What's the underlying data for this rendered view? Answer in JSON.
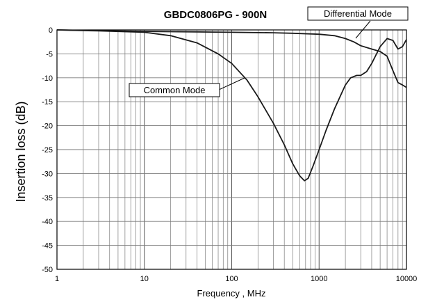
{
  "chart_data": {
    "type": "line",
    "title": "GBDC0806PG - 900N",
    "xlabel": "Frequency , MHz",
    "ylabel": "Insertion loss (dB)",
    "x_scale": "log",
    "xlim": [
      1,
      10000
    ],
    "ylim": [
      -50,
      0
    ],
    "x_ticks": [
      "1",
      "10",
      "100",
      "1000",
      "10000"
    ],
    "y_ticks": [
      "0",
      "-5",
      "-10",
      "-15",
      "-20",
      "-25",
      "-30",
      "-35",
      "-40",
      "-45",
      "-50"
    ],
    "grid": true,
    "legend": "none",
    "annotations": [
      "Common Mode",
      "Differential Mode"
    ],
    "series": [
      {
        "name": "Common Mode",
        "color": "#1a1a1a",
        "x": [
          1,
          3,
          10,
          20,
          40,
          70,
          100,
          150,
          200,
          300,
          400,
          500,
          600,
          680,
          750,
          850,
          1000,
          1200,
          1500,
          2000,
          2300,
          2700,
          3000,
          3500,
          4000,
          5000,
          6000,
          7000,
          8000,
          9000,
          10000
        ],
        "y": [
          0,
          -0.2,
          -0.5,
          -1.2,
          -2.7,
          -5,
          -7,
          -10.5,
          -14,
          -19.5,
          -24,
          -28,
          -30.5,
          -31.5,
          -31,
          -28.5,
          -25,
          -21,
          -16.5,
          -11.5,
          -10,
          -9.5,
          -9.5,
          -8.7,
          -7,
          -3.5,
          -1.8,
          -2.2,
          -4,
          -3.5,
          -2
        ]
      },
      {
        "name": "Differential Mode",
        "color": "#1a1a1a",
        "x": [
          1,
          10,
          100,
          300,
          500,
          1000,
          1500,
          2000,
          2500,
          3000,
          4000,
          5000,
          6000,
          7000,
          8000,
          9000,
          10000
        ],
        "y": [
          0,
          -0.3,
          -0.5,
          -0.6,
          -0.7,
          -0.9,
          -1.2,
          -1.8,
          -2.5,
          -3.3,
          -4,
          -4.5,
          -5.5,
          -8.5,
          -11,
          -11.5,
          -12
        ]
      }
    ]
  }
}
